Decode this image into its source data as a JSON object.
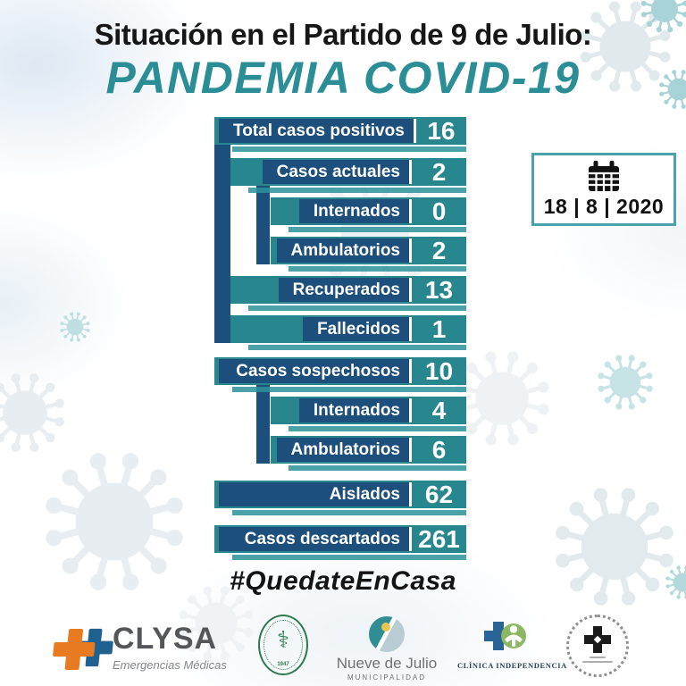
{
  "header": {
    "kicker": "Situación en el Partido de 9 de Julio:",
    "title": "PANDEMIA COVID-19"
  },
  "date_box": {
    "value": "18 | 8 | 2020",
    "day": "18",
    "month": "8",
    "year": "2020"
  },
  "hashtag": "#QuedateEnCasa",
  "chart_data": {
    "type": "bar",
    "title": "Situación en el Partido de 9 de Julio: Pandemia COVID-19",
    "date": "18 | 8 | 2020",
    "categories": [
      "Total casos positivos",
      "Casos actuales",
      "Internados",
      "Ambulatorios",
      "Recuperados",
      "Fallecidos",
      "Casos sospechosos",
      "Internados",
      "Ambulatorios",
      "Aislados",
      "Casos descartados"
    ],
    "values": [
      16,
      2,
      0,
      2,
      13,
      1,
      10,
      4,
      6,
      62,
      261
    ],
    "rows": [
      {
        "label": "Total casos positivos",
        "value": "16",
        "indent": 0,
        "full": true,
        "group": "positivos"
      },
      {
        "label": "Casos actuales",
        "value": "2",
        "indent": 1,
        "full": false,
        "group": "positivos"
      },
      {
        "label": "Internados",
        "value": "0",
        "indent": 2,
        "full": false,
        "group": "positivos"
      },
      {
        "label": "Ambulatorios",
        "value": "2",
        "indent": 2,
        "full": false,
        "group": "positivos"
      },
      {
        "label": "Recuperados",
        "value": "13",
        "indent": 1,
        "full": false,
        "group": "positivos"
      },
      {
        "label": "Fallecidos",
        "value": "1",
        "indent": 1,
        "full": false,
        "group": "positivos"
      },
      {
        "label": "Casos sospechosos",
        "value": "10",
        "indent": 0,
        "full": true,
        "group": "sospechosos"
      },
      {
        "label": "Internados",
        "value": "4",
        "indent": 2,
        "full": false,
        "group": "sospechosos"
      },
      {
        "label": "Ambulatorios",
        "value": "6",
        "indent": 2,
        "full": false,
        "group": "sospechosos"
      },
      {
        "label": "Aislados",
        "value": "62",
        "indent": 0,
        "full": true,
        "group": "standalone"
      },
      {
        "label": "Casos descartados",
        "value": "261",
        "indent": 0,
        "full": true,
        "group": "standalone"
      }
    ],
    "colors": {
      "bar_teal": "#27868e",
      "label_navy": "#1d4f7d",
      "value_text": "#ffffff",
      "title_teal": "#2b8e97",
      "date_border_teal": "#4aa3ab"
    },
    "legend": "none",
    "grid": false
  },
  "footer": {
    "logos": [
      {
        "name": "clysa",
        "text": "CLYSA",
        "subtext": "Emergencias Médicas"
      },
      {
        "name": "medical-society-seal",
        "text": "1947"
      },
      {
        "name": "nueve-de-julio",
        "text": "Nueve de Julio",
        "subtext": "MUNICIPALIDAD"
      },
      {
        "name": "clinica-independencia",
        "text": "CLÍNICA INDEPENDENCIA"
      },
      {
        "name": "round-seal"
      }
    ]
  }
}
